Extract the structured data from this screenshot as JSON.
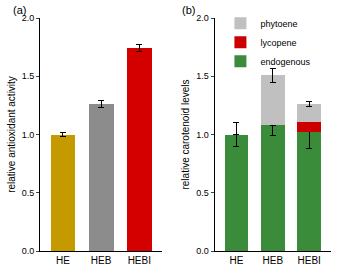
{
  "chart_data": [
    {
      "type": "bar",
      "title": "(a)",
      "categories": [
        "HE",
        "HEB",
        "HEBI"
      ],
      "values": [
        1.0,
        1.26,
        1.74
      ],
      "errors": [
        0.02,
        0.03,
        0.03
      ],
      "colors": [
        "#c49a00",
        "#8c8c8c",
        "#d40000"
      ],
      "y_label": "relative antioxidant activity",
      "ylim": [
        0,
        2.0
      ],
      "yticks": [
        {
          "value": 0,
          "label": "0.0"
        },
        {
          "value": 0.5,
          "label": "0.5"
        },
        {
          "value": 1.0,
          "label": "1.0"
        },
        {
          "value": 1.5,
          "label": "1.5"
        },
        {
          "value": 2.0,
          "label": "2.0"
        }
      ]
    },
    {
      "type": "bar",
      "title": "(b)",
      "stacked": true,
      "legend": "top left",
      "categories": [
        "HE",
        "HEB",
        "HEBI"
      ],
      "series": [
        {
          "name": "endogenous",
          "color": "#3a8c3a",
          "values": [
            1.0,
            1.08,
            1.02
          ],
          "errors": [
            0.1,
            0.09,
            0.14
          ]
        },
        {
          "name": "lycopene",
          "color": "#cc0000",
          "values": [
            0,
            0,
            0.09
          ],
          "errors": [
            null,
            null,
            null
          ]
        },
        {
          "name": "phytoene",
          "color": "#c0c0c0",
          "values": [
            0,
            0.43,
            0.15
          ],
          "errors": [
            null,
            0.06,
            0.02
          ]
        }
      ],
      "y_label": "relative carotenoid levels",
      "ylim": [
        0,
        2.0
      ],
      "yticks": [
        {
          "value": 0,
          "label": "0.0"
        },
        {
          "value": 0.5,
          "label": "0.5"
        },
        {
          "value": 1.0,
          "label": "1.0"
        },
        {
          "value": 1.5,
          "label": "1.5"
        },
        {
          "value": 2.0,
          "label": "2.0"
        }
      ]
    }
  ]
}
